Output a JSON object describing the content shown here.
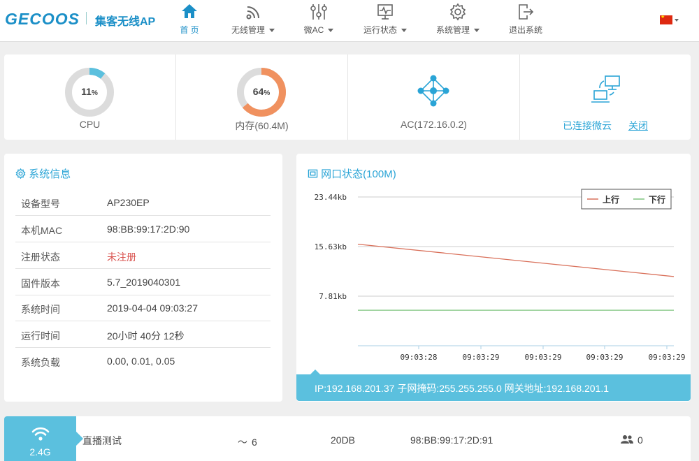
{
  "header": {
    "logo": "GECOOS",
    "subtitle": "集客无线AP",
    "nav": [
      {
        "label": "首 页",
        "icon": "home-icon",
        "active": true
      },
      {
        "label": "无线管理",
        "icon": "wifi-icon",
        "dropdown": true
      },
      {
        "label": "微AC",
        "icon": "sliders-icon",
        "dropdown": true
      },
      {
        "label": "运行状态",
        "icon": "monitor-icon",
        "dropdown": true
      },
      {
        "label": "系统管理",
        "icon": "gear-icon",
        "dropdown": true
      },
      {
        "label": "退出系统",
        "icon": "logout-icon"
      }
    ],
    "language_flag": "cn-flag-icon"
  },
  "stats": {
    "cpu": {
      "value": "11",
      "unit": "%",
      "percent": 11,
      "label": "CPU",
      "color": "#5bc0de"
    },
    "memory": {
      "value": "64",
      "unit": "%",
      "percent": 64,
      "label": "内存(60.4M)",
      "color": "#f0915f"
    },
    "ac": {
      "label": "AC(172.16.0.2)",
      "icon": "network-nodes-icon"
    },
    "cloud": {
      "status": "已连接微云",
      "close": "关闭",
      "icon": "computer-link-icon"
    }
  },
  "sysinfo": {
    "title": "系统信息",
    "rows": [
      {
        "k": "设备型号",
        "v": "AP230EP"
      },
      {
        "k": "本机MAC",
        "v": "98:BB:99:17:2D:90"
      },
      {
        "k": "注册状态",
        "v": "未注册",
        "alert": true
      },
      {
        "k": "固件版本",
        "v": "5.7_2019040301"
      },
      {
        "k": "系统时间",
        "v": "2019-04-04 09:03:27"
      },
      {
        "k": "运行时间",
        "v": "20小时 40分 12秒"
      },
      {
        "k": "系统负载",
        "v": "0.00, 0.01, 0.05"
      }
    ]
  },
  "network": {
    "title": "网口状态(100M)",
    "ip_line": "IP:192.168.201.37  子网掩码:255.255.255.0  网关地址:192.168.201.1"
  },
  "chart_data": {
    "type": "line",
    "x": [
      "09:03:28",
      "09:03:29",
      "09:03:29",
      "09:03:29",
      "09:03:29"
    ],
    "y_ticks": [
      "23.44kb",
      "15.63kb",
      "7.81kb"
    ],
    "ylim": [
      0,
      23.44
    ],
    "series": [
      {
        "name": "上行",
        "color": "#d9705a",
        "start": 16.0,
        "end": 10.9
      },
      {
        "name": "下行",
        "color": "#7fc47f",
        "start": 5.6,
        "end": 5.6
      }
    ],
    "legend": "top-right"
  },
  "wlan": {
    "band": "2.4G",
    "ssid": "直播测试",
    "channel": "6",
    "power": "20DB",
    "bssid": "98:BB:99:17:2D:91",
    "clients": "0"
  }
}
